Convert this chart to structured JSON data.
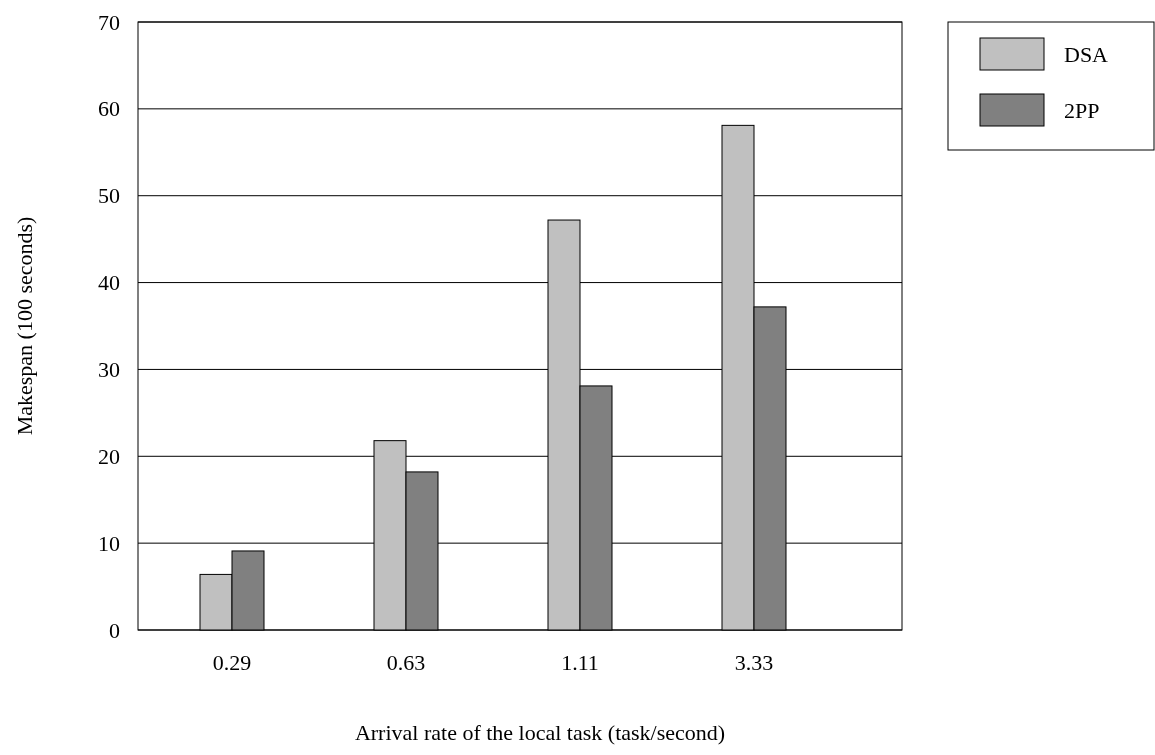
{
  "chart_data": {
    "type": "bar",
    "xlabel": "Arrival rate of the local task (task/second)",
    "ylabel": "Makespan (100 seconds)",
    "categories": [
      "0.29",
      "0.63",
      "1.11",
      "3.33"
    ],
    "series": [
      {
        "name": "DSA",
        "color": "#c0c0c0",
        "values": [
          6.4,
          21.8,
          47.2,
          58.1
        ]
      },
      {
        "name": "2PP",
        "color": "#808080",
        "values": [
          9.1,
          18.2,
          28.1,
          37.2
        ]
      }
    ],
    "ylim": [
      0,
      70
    ],
    "yticks": [
      0,
      10,
      20,
      30,
      40,
      50,
      60,
      70
    ],
    "grid": "y",
    "legend": "top right"
  }
}
